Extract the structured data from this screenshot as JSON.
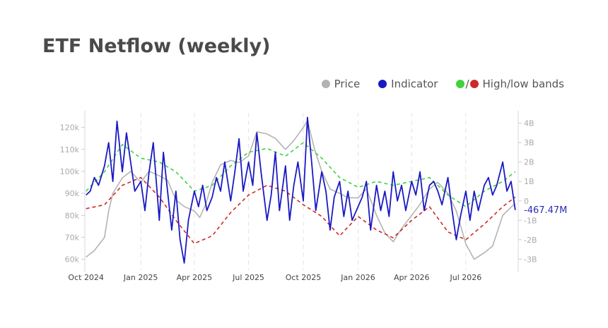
{
  "colors": {
    "price": "#b3b3b3",
    "indicator": "#1a1ac4",
    "band_high": "#3ed23e",
    "band_low": "#cc2a2a",
    "title": "#4a4a4a"
  },
  "chart_data": {
    "type": "line",
    "title": "ETF Netflow (weekly)",
    "legend": {
      "placement": "top-right",
      "price": "Price",
      "indicator": "Indicator",
      "bands_label": "High/low bands",
      "bands_separator": "/"
    },
    "x_range": [
      "2024-09-29",
      "2026-09-27"
    ],
    "x_tick_dates": [
      "2024-10-01",
      "2025-01-01",
      "2025-04-01",
      "2025-07-01",
      "2025-10-01",
      "2026-01-01",
      "2026-04-01",
      "2026-07-01"
    ],
    "x_tick_labels": [
      "Oct 2024",
      "Jan 2025",
      "Apr 2025",
      "Jul 2025",
      "Oct 2025",
      "Jan 2026",
      "Apr 2026",
      "Jul 2026"
    ],
    "y_left": {
      "range": [
        57000,
        125000
      ],
      "ticks": [
        60000,
        70000,
        80000,
        90000,
        100000,
        110000,
        120000
      ],
      "tick_labels": [
        "60k",
        "70k",
        "80k",
        "90k",
        "100k",
        "110k",
        "120k"
      ]
    },
    "y_right": {
      "range": [
        -3.35,
        4.35
      ],
      "ticks": [
        -3,
        -2,
        -1,
        0,
        1,
        2,
        3,
        4
      ],
      "tick_labels": [
        "-3B",
        "-2B",
        "-1B",
        "0",
        "1B",
        "2B",
        "3B",
        "4B"
      ]
    },
    "grid": "vertical dashed at x ticks",
    "last_value_label": "-467.47M",
    "series": [
      {
        "name": "Price",
        "axis": "left",
        "x": [
          "2024-10-01",
          "2024-10-15",
          "2024-11-01",
          "2024-11-08",
          "2024-11-15",
          "2024-12-01",
          "2024-12-15",
          "2025-01-01",
          "2025-01-15",
          "2025-02-01",
          "2025-02-15",
          "2025-03-01",
          "2025-03-15",
          "2025-04-01",
          "2025-04-10",
          "2025-04-20",
          "2025-05-01",
          "2025-05-15",
          "2025-06-01",
          "2025-06-15",
          "2025-07-01",
          "2025-07-15",
          "2025-08-01",
          "2025-08-15",
          "2025-09-01",
          "2025-09-15",
          "2025-10-01",
          "2025-10-08",
          "2025-10-20",
          "2025-11-01",
          "2025-11-15",
          "2025-12-01",
          "2025-12-15",
          "2026-01-01",
          "2026-01-15",
          "2026-02-01",
          "2026-02-15",
          "2026-03-01",
          "2026-03-15",
          "2026-04-01",
          "2026-04-15",
          "2026-05-01",
          "2026-05-15",
          "2026-06-01",
          "2026-06-15",
          "2026-07-01",
          "2026-07-15",
          "2026-08-01",
          "2026-08-15",
          "2026-09-01",
          "2026-09-20"
        ],
        "values": [
          61000,
          64000,
          70000,
          82000,
          90000,
          97000,
          100000,
          95000,
          100000,
          98000,
          96000,
          87000,
          84000,
          82000,
          79000,
          85000,
          95000,
          103000,
          105000,
          104000,
          107000,
          118000,
          117000,
          115000,
          110000,
          114000,
          120000,
          123000,
          110000,
          100000,
          92000,
          90000,
          88000,
          88000,
          92000,
          80000,
          72000,
          68000,
          74000,
          80000,
          85000,
          92000,
          95000,
          90000,
          82000,
          67000,
          60000,
          63000,
          66000,
          80000,
          85000
        ]
      },
      {
        "name": "Indicator",
        "axis": "right",
        "x": [
          "2024-10-01",
          "2024-10-08",
          "2024-10-15",
          "2024-10-22",
          "2024-11-01",
          "2024-11-08",
          "2024-11-15",
          "2024-11-22",
          "2024-12-01",
          "2024-12-08",
          "2024-12-15",
          "2024-12-22",
          "2025-01-01",
          "2025-01-08",
          "2025-01-15",
          "2025-01-22",
          "2025-02-01",
          "2025-02-08",
          "2025-02-15",
          "2025-02-22",
          "2025-03-01",
          "2025-03-08",
          "2025-03-15",
          "2025-03-22",
          "2025-04-01",
          "2025-04-08",
          "2025-04-15",
          "2025-04-22",
          "2025-05-01",
          "2025-05-08",
          "2025-05-15",
          "2025-05-22",
          "2025-06-01",
          "2025-06-08",
          "2025-06-15",
          "2025-06-22",
          "2025-07-01",
          "2025-07-08",
          "2025-07-15",
          "2025-07-22",
          "2025-08-01",
          "2025-08-08",
          "2025-08-15",
          "2025-08-22",
          "2025-09-01",
          "2025-09-08",
          "2025-09-15",
          "2025-09-22",
          "2025-10-01",
          "2025-10-08",
          "2025-10-15",
          "2025-10-22",
          "2025-11-01",
          "2025-11-08",
          "2025-11-15",
          "2025-11-22",
          "2025-12-01",
          "2025-12-08",
          "2025-12-15",
          "2025-12-22",
          "2026-01-01",
          "2026-01-08",
          "2026-01-15",
          "2026-01-22",
          "2026-02-01",
          "2026-02-08",
          "2026-02-15",
          "2026-02-22",
          "2026-03-01",
          "2026-03-08",
          "2026-03-15",
          "2026-03-22",
          "2026-04-01",
          "2026-04-08",
          "2026-04-15",
          "2026-04-22",
          "2026-05-01",
          "2026-05-08",
          "2026-05-15",
          "2026-05-22",
          "2026-06-01",
          "2026-06-08",
          "2026-06-15",
          "2026-06-22",
          "2026-07-01",
          "2026-07-08",
          "2026-07-15",
          "2026-07-22",
          "2026-08-01",
          "2026-08-08",
          "2026-08-15",
          "2026-08-22",
          "2026-09-01",
          "2026-09-08",
          "2026-09-15",
          "2026-09-22"
        ],
        "values": [
          0.3,
          0.5,
          1.2,
          0.8,
          1.8,
          3.0,
          1.0,
          4.1,
          1.5,
          3.5,
          2.0,
          0.5,
          1.0,
          -0.5,
          1.5,
          3.0,
          -1.0,
          2.5,
          0.5,
          -1.5,
          0.5,
          -2.0,
          -3.2,
          -1.0,
          0.5,
          -0.3,
          0.8,
          -0.5,
          0.2,
          1.2,
          0.5,
          2.0,
          0.0,
          1.5,
          3.2,
          0.5,
          2.0,
          0.8,
          3.5,
          1.5,
          -1.0,
          0.3,
          2.5,
          -0.5,
          1.8,
          -1.0,
          0.8,
          2.0,
          0.0,
          4.3,
          2.0,
          -0.5,
          1.5,
          0.5,
          -1.5,
          0.2,
          1.0,
          -0.8,
          0.5,
          -1.0,
          -0.3,
          0.2,
          1.0,
          -1.5,
          0.8,
          -0.5,
          0.5,
          -0.8,
          1.5,
          0.0,
          0.8,
          -0.5,
          1.0,
          0.3,
          1.5,
          -0.5,
          0.8,
          1.0,
          0.5,
          -0.2,
          1.2,
          -0.5,
          -2.0,
          -0.8,
          0.5,
          -1.0,
          0.5,
          -0.5,
          0.8,
          1.2,
          0.3,
          0.8,
          2.0,
          0.5,
          1.0,
          -0.47
        ]
      },
      {
        "name": "High band",
        "axis": "right",
        "x": [
          "2024-10-01",
          "2024-11-01",
          "2024-12-01",
          "2025-01-01",
          "2025-02-01",
          "2025-03-01",
          "2025-04-01",
          "2025-05-01",
          "2025-06-01",
          "2025-07-01",
          "2025-08-01",
          "2025-09-01",
          "2025-10-01",
          "2025-11-01",
          "2025-12-01",
          "2026-01-01",
          "2026-02-01",
          "2026-03-01",
          "2026-04-01",
          "2026-05-01",
          "2026-06-01",
          "2026-07-01",
          "2026-08-01",
          "2026-09-01",
          "2026-09-22"
        ],
        "values": [
          0.5,
          1.5,
          2.9,
          2.2,
          2.0,
          1.5,
          0.5,
          0.8,
          1.8,
          2.5,
          2.7,
          2.3,
          3.0,
          2.2,
          1.2,
          0.7,
          1.0,
          0.8,
          1.0,
          1.2,
          0.3,
          -0.3,
          0.5,
          1.0,
          1.5
        ]
      },
      {
        "name": "Low band",
        "axis": "right",
        "x": [
          "2024-10-01",
          "2024-11-01",
          "2024-12-01",
          "2025-01-01",
          "2025-02-01",
          "2025-03-01",
          "2025-04-01",
          "2025-05-01",
          "2025-06-01",
          "2025-07-01",
          "2025-08-01",
          "2025-09-01",
          "2025-10-01",
          "2025-11-01",
          "2025-12-01",
          "2026-01-01",
          "2026-02-01",
          "2026-03-01",
          "2026-04-01",
          "2026-05-01",
          "2026-06-01",
          "2026-07-01",
          "2026-08-01",
          "2026-09-01",
          "2026-09-22"
        ],
        "values": [
          -0.4,
          -0.2,
          0.8,
          1.2,
          0.2,
          -1.0,
          -2.2,
          -1.8,
          -0.6,
          0.3,
          0.8,
          0.5,
          -0.2,
          -0.8,
          -1.8,
          -0.8,
          -1.5,
          -1.9,
          -1.0,
          -0.3,
          -1.6,
          -2.0,
          -1.2,
          -0.3,
          0.2
        ]
      }
    ]
  }
}
